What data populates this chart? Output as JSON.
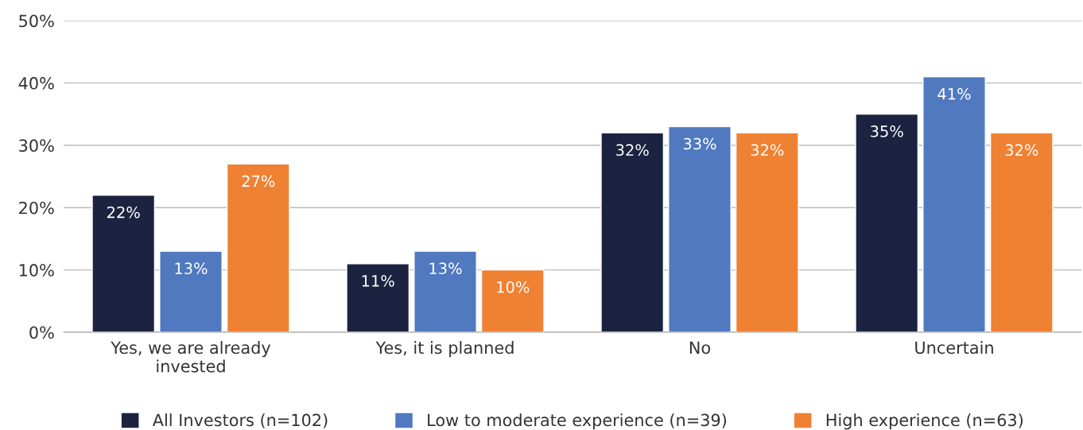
{
  "chart_data": {
    "type": "bar",
    "categories": [
      "Yes, we are already\ninvested",
      "Yes, it is planned",
      "No",
      "Uncertain"
    ],
    "series": [
      {
        "name": "All Investors (n=102)",
        "color": "#1b2341",
        "values": [
          22,
          11,
          32,
          35
        ],
        "value_labels": [
          "22%",
          "11%",
          "32%",
          "35%"
        ]
      },
      {
        "name": "Low to moderate experience (n=39)",
        "color": "#5079bf",
        "values": [
          13,
          13,
          33,
          41
        ],
        "value_labels": [
          "13%",
          "13%",
          "33%",
          "41%"
        ]
      },
      {
        "name": "High experience (n=63)",
        "color": "#ef8133",
        "values": [
          27,
          10,
          32,
          32
        ],
        "value_labels": [
          "27%",
          "10%",
          "32%",
          "32%"
        ]
      }
    ],
    "ylim": [
      0,
      50
    ],
    "yticks": [
      {
        "value": 0,
        "label": "0%"
      },
      {
        "value": 10,
        "label": "10%"
      },
      {
        "value": 20,
        "label": "20%"
      },
      {
        "value": 30,
        "label": "30%"
      },
      {
        "value": 40,
        "label": "40%"
      },
      {
        "value": 50,
        "label": "50%"
      }
    ],
    "grid": "y",
    "legend": "bottom"
  }
}
